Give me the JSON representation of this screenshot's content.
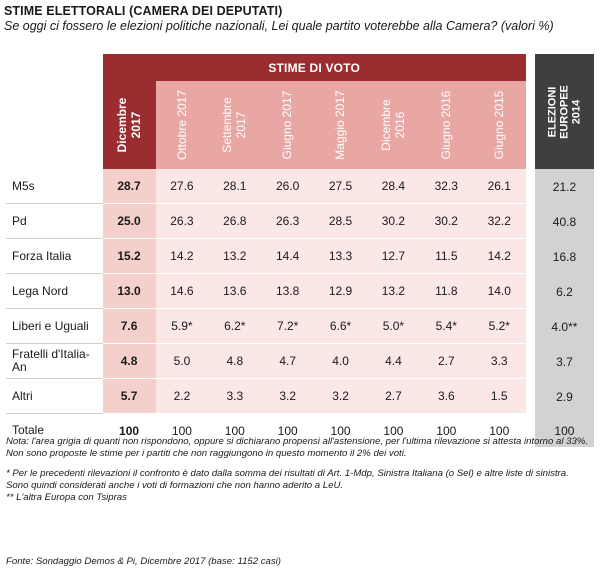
{
  "title": "STIME ELETTORALI  (CAMERA DEI DEPUTATI)",
  "subtitle": "Se oggi ci fossero le elezioni politiche nazionali,  Lei quale partito voterebbe alla Camera? (valori %)",
  "header": {
    "group_label": "STIME DI VOTO",
    "eu_label": "ELEZIONI EUROPEE 2014",
    "columns": [
      "Dicembre 2017",
      "Ottobre 2017",
      "Settembre 2017",
      "Giugno 2017",
      "Maggio 2017",
      "Dicembre 2016",
      "Giugno 2016",
      "Giugno 2015"
    ]
  },
  "rows": [
    {
      "party": "M5s",
      "values": [
        "28.7",
        "27.6",
        "28.1",
        "26.0",
        "27.5",
        "28.4",
        "32.3",
        "26.1"
      ],
      "eu": "21.2"
    },
    {
      "party": "Pd",
      "values": [
        "25.0",
        "26.3",
        "26.8",
        "26.3",
        "28.5",
        "30.2",
        "30.2",
        "32.2"
      ],
      "eu": "40.8"
    },
    {
      "party": "Forza Italia",
      "values": [
        "15.2",
        "14.2",
        "13.2",
        "14.4",
        "13.3",
        "12.7",
        "11.5",
        "14.2"
      ],
      "eu": "16.8"
    },
    {
      "party": "Lega Nord",
      "values": [
        "13.0",
        "14.6",
        "13.6",
        "13.8",
        "12.9",
        "13.2",
        "11.8",
        "14.0"
      ],
      "eu": "6.2"
    },
    {
      "party": "Liberi e Uguali",
      "values": [
        "7.6",
        "5.9*",
        "6.2*",
        "7.2*",
        "6.6*",
        "5.0*",
        "5.4*",
        "5.2*"
      ],
      "eu": "4.0**"
    },
    {
      "party": "Fratelli d'Italia-An",
      "values": [
        "4.8",
        "5.0",
        "4.8",
        "4.7",
        "4.0",
        "4.4",
        "2.7",
        "3.3"
      ],
      "eu": "3.7"
    },
    {
      "party": "Altri",
      "values": [
        "5.7",
        "2.2",
        "3.3",
        "3.2",
        "3.2",
        "2.7",
        "3.6",
        "1.5"
      ],
      "eu": "2.9"
    }
  ],
  "total": {
    "label": "Totale",
    "values": [
      "100",
      "100",
      "100",
      "100",
      "100",
      "100",
      "100",
      "100"
    ],
    "eu": "100"
  },
  "notes": {
    "note1": "Nota: l'area grigia di quanti non rispondono, oppure si dichiarano propensi all'astensione, per l'ultima rilevazione si attesta intorno al 33%. Non sono proposte le stime per i partiti che non raggiungono in questo momento il 2% dei voti.",
    "note2": "* Per le precedenti rilevazioni il confronto è dato dalla somma dei risultati di Art. 1-Mdp, Sinistra Italiana (o Sel) e altre liste di sinistra. Sono quindi considerati anche i voti di formazioni che non hanno aderito a LeU.",
    "note3": "** L'altra Europa con Tsipras"
  },
  "source": "Fonte: Sondaggio Demos & Pi, Dicembre 2017 (base: 1152 casi)",
  "colors": {
    "accent_dark": "#9b2d30",
    "accent_light": "#e8a7a3",
    "cell_dec": "#f4cfcc",
    "cell_other": "#fbe8e6",
    "eu_header": "#3f3f3f",
    "eu_cell": "#d2d2d2"
  }
}
